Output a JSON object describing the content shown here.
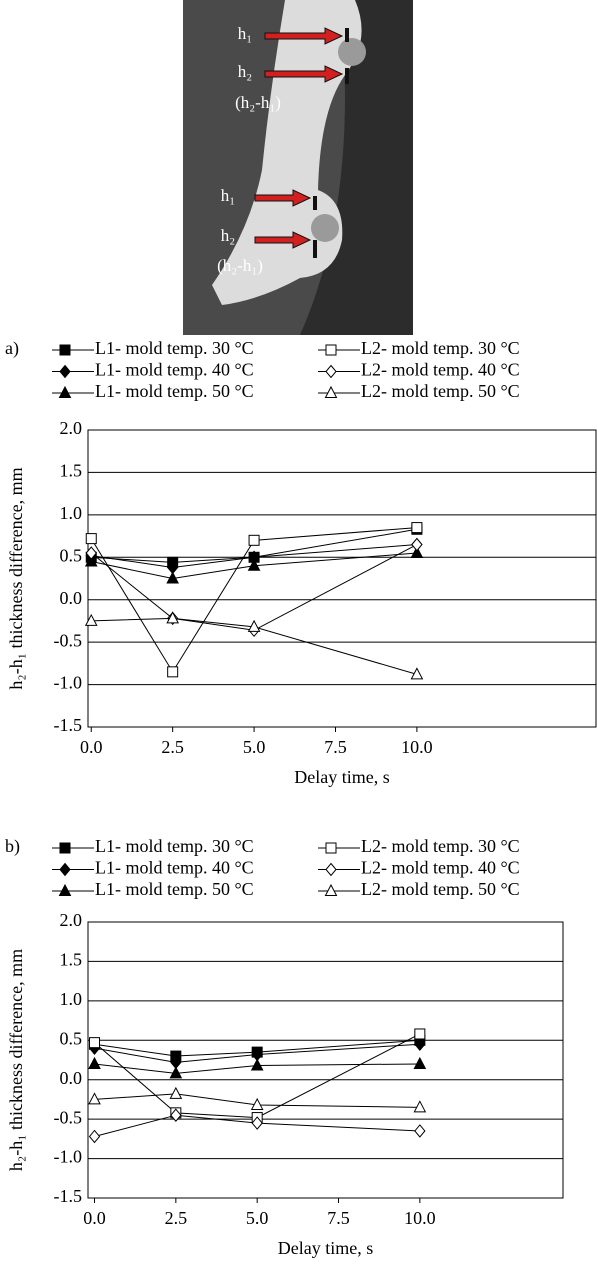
{
  "photo": {
    "labels": [
      "h₁",
      "h₂",
      "(h₂-h₁)",
      "h₁",
      "h₂",
      "(h₂-h₁)"
    ]
  },
  "chart_data": [
    {
      "type": "line",
      "panel_label": "a)",
      "xlabel": "Delay time, s",
      "ylabel": "h₂-h₁ thickness difference, mm",
      "x": [
        0,
        2.5,
        5,
        10
      ],
      "xlim": [
        -0.1,
        15.5
      ],
      "xticks": [
        {
          "value": 0,
          "label": "0.0"
        },
        2.5,
        {
          "value": 5,
          "label": "5.0"
        },
        7.5,
        {
          "value": 10,
          "label": "10.0"
        }
      ],
      "ylim": [
        -1.5,
        2
      ],
      "yticks": [
        -1.5,
        {
          "value": -1,
          "label": "-1.0"
        },
        -0.5,
        {
          "value": 0,
          "label": "0.0"
        },
        0.5,
        {
          "value": 1,
          "label": "1.0"
        },
        1.5,
        {
          "value": 2,
          "label": "2.0"
        }
      ],
      "grid": true,
      "series": [
        {
          "name": "L1- mold temp. 30 °C",
          "color": "#000000",
          "marker": "square",
          "filled": true,
          "values": [
            0.5,
            0.44,
            0.5,
            0.83
          ]
        },
        {
          "name": "L1- mold temp. 40 °C",
          "color": "#000000",
          "marker": "diamond",
          "filled": true,
          "values": [
            0.52,
            0.38,
            0.5,
            0.65
          ]
        },
        {
          "name": "L1- mold temp. 50 °C",
          "color": "#000000",
          "marker": "triangle",
          "filled": true,
          "values": [
            0.45,
            0.25,
            0.4,
            0.55
          ]
        },
        {
          "name": "L2- mold temp. 30 °C",
          "color": "#000000",
          "marker": "square",
          "filled": false,
          "values": [
            0.72,
            -0.85,
            0.7,
            0.85
          ]
        },
        {
          "name": "L2- mold temp. 40 °C",
          "color": "#000000",
          "marker": "diamond",
          "filled": false,
          "values": [
            0.55,
            -0.22,
            -0.36,
            0.65
          ]
        },
        {
          "name": "L2- mold temp. 50 °C",
          "color": "#000000",
          "marker": "triangle",
          "filled": false,
          "values": [
            -0.25,
            -0.22,
            -0.32,
            -0.88
          ]
        }
      ]
    },
    {
      "type": "line",
      "panel_label": "b)",
      "xlabel": "Delay time, s",
      "ylabel": "h₂-h₁ thickness difference, mm",
      "x": [
        0,
        2.5,
        5,
        10
      ],
      "xlim": [
        -0.2,
        14.4
      ],
      "xticks": [
        {
          "value": 0,
          "label": "0.0"
        },
        2.5,
        {
          "value": 5,
          "label": "5.0"
        },
        7.5,
        {
          "value": 10,
          "label": "10.0"
        }
      ],
      "ylim": [
        -1.5,
        2
      ],
      "yticks": [
        -1.5,
        {
          "value": -1,
          "label": "-1.0"
        },
        -0.5,
        {
          "value": 0,
          "label": "0.0"
        },
        0.5,
        {
          "value": 1,
          "label": "1.0"
        },
        1.5,
        {
          "value": 2,
          "label": "2.0"
        }
      ],
      "grid": true,
      "series": [
        {
          "name": "L1- mold temp. 30 °C",
          "color": "#000000",
          "marker": "square",
          "filled": true,
          "values": [
            0.45,
            0.3,
            0.35,
            0.5
          ]
        },
        {
          "name": "L1- mold temp. 40 °C",
          "color": "#000000",
          "marker": "diamond",
          "filled": true,
          "values": [
            0.4,
            0.22,
            0.32,
            0.45
          ]
        },
        {
          "name": "L1- mold temp. 50 °C",
          "color": "#000000",
          "marker": "triangle",
          "filled": true,
          "values": [
            0.2,
            0.08,
            0.18,
            0.2
          ]
        },
        {
          "name": "L2- mold temp. 30 °C",
          "color": "#000000",
          "marker": "square",
          "filled": false,
          "values": [
            0.47,
            -0.42,
            -0.48,
            0.58
          ]
        },
        {
          "name": "L2- mold temp. 40 °C",
          "color": "#000000",
          "marker": "diamond",
          "filled": false,
          "values": [
            -0.72,
            -0.45,
            -0.55,
            -0.65
          ]
        },
        {
          "name": "L2- mold temp. 50 °C",
          "color": "#000000",
          "marker": "triangle",
          "filled": false,
          "values": [
            -0.25,
            -0.18,
            -0.32,
            -0.35
          ]
        }
      ]
    }
  ]
}
